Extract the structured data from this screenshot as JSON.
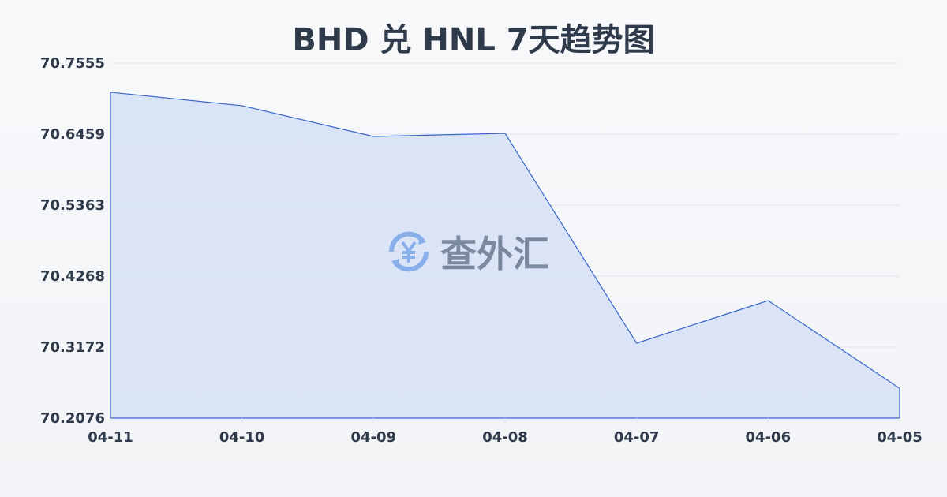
{
  "chart_data": {
    "type": "area",
    "title": "BHD 兑 HNL 7天趋势图",
    "categories": [
      "04-11",
      "04-10",
      "04-09",
      "04-08",
      "04-07",
      "04-06",
      "04-05"
    ],
    "values": [
      70.7105,
      70.6898,
      70.6423,
      70.6471,
      70.3233,
      70.389,
      70.2535
    ],
    "yticks": [
      "70.7555",
      "70.6459",
      "70.5363",
      "70.4268",
      "70.3172",
      "70.2076"
    ],
    "ylim": [
      70.2076,
      70.7555
    ],
    "grid": true,
    "colors": {
      "line": "#3a66c9",
      "fill": "#d5e1f6"
    }
  },
  "watermark": {
    "text": "查外汇",
    "icon": "yen-exchange-icon"
  }
}
